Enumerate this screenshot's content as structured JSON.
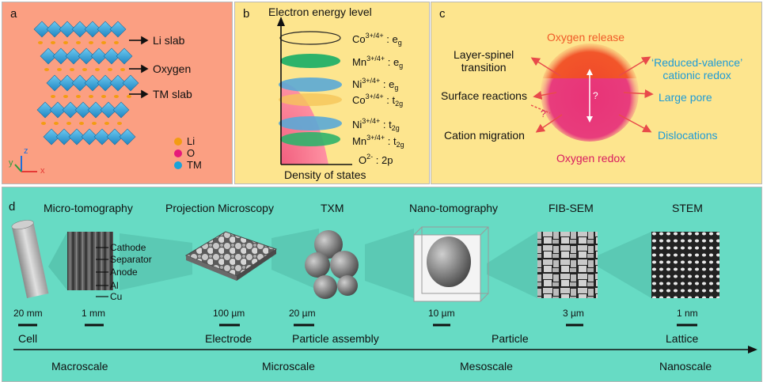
{
  "colors": {
    "panel_a": "#fb9f82",
    "panel_bc": "#fde58e",
    "panel_d": "#67dbc4",
    "orange_text": "#f05a28",
    "magenta_text": "#d81b60",
    "blue_text": "#1e9bd7",
    "arrow_red": "#e84a4a"
  },
  "panel_a": {
    "letter": "a",
    "labels": [
      "Li slab",
      "Oxygen",
      "TM slab"
    ],
    "legend": [
      {
        "label": "Li",
        "color": "#f39c12"
      },
      {
        "label": "O",
        "color": "#e6197a"
      },
      {
        "label": "TM",
        "color": "#1ba3d9"
      }
    ],
    "axes": {
      "x": "x",
      "y": "y",
      "z": "z"
    }
  },
  "panel_b": {
    "letter": "b",
    "y_label": "Electron energy level",
    "x_label": "Density of states",
    "levels": [
      {
        "ion": "Co",
        "ox": "3+/4+",
        "orb": "e",
        "orb_sub": "g"
      },
      {
        "ion": "Mn",
        "ox": "3+/4+",
        "orb": "e",
        "orb_sub": "g"
      },
      {
        "ion": "Ni",
        "ox": "3+/4+",
        "orb": "e",
        "orb_sub": "g"
      },
      {
        "ion": "Co",
        "ox": "3+/4+",
        "orb": "t",
        "orb_sub": "2g"
      },
      {
        "ion": "Ni",
        "ox": "3+/4+",
        "orb": "t",
        "orb_sub": "2g"
      },
      {
        "ion": "Mn",
        "ox": "3+/4+",
        "orb": "t",
        "orb_sub": "2g"
      },
      {
        "ion": "O",
        "ox": "2-",
        "orb": "2p",
        "orb_sub": ""
      }
    ]
  },
  "panel_c": {
    "letter": "c",
    "top": "Oxygen release",
    "bottom": "Oxygen redox",
    "left": [
      "Layer-spinel",
      "transition",
      "Surface reactions",
      "Cation migration"
    ],
    "right": [
      "‘Reduced-valence’",
      "cationic redox",
      "Large pore",
      "Dislocations"
    ],
    "question": "?"
  },
  "panel_d": {
    "letter": "d",
    "techniques": [
      "Micro-tomography",
      "Projection Microscopy",
      "TXM",
      "Nano-tomography",
      "FIB-SEM",
      "STEM"
    ],
    "cell_layers": [
      "Cathode",
      "Separator",
      "Anode",
      "Al",
      "Cu"
    ],
    "scale_bars": [
      "20 mm",
      "1 mm",
      "100 µm",
      "20 µm",
      "10 µm",
      "3 µm",
      "1 nm"
    ],
    "objects": [
      "Cell",
      "Electrode",
      "Particle assembly",
      "Particle",
      "Lattice"
    ],
    "scales": [
      "Macroscale",
      "Microscale",
      "Mesoscale",
      "Nanoscale"
    ]
  }
}
